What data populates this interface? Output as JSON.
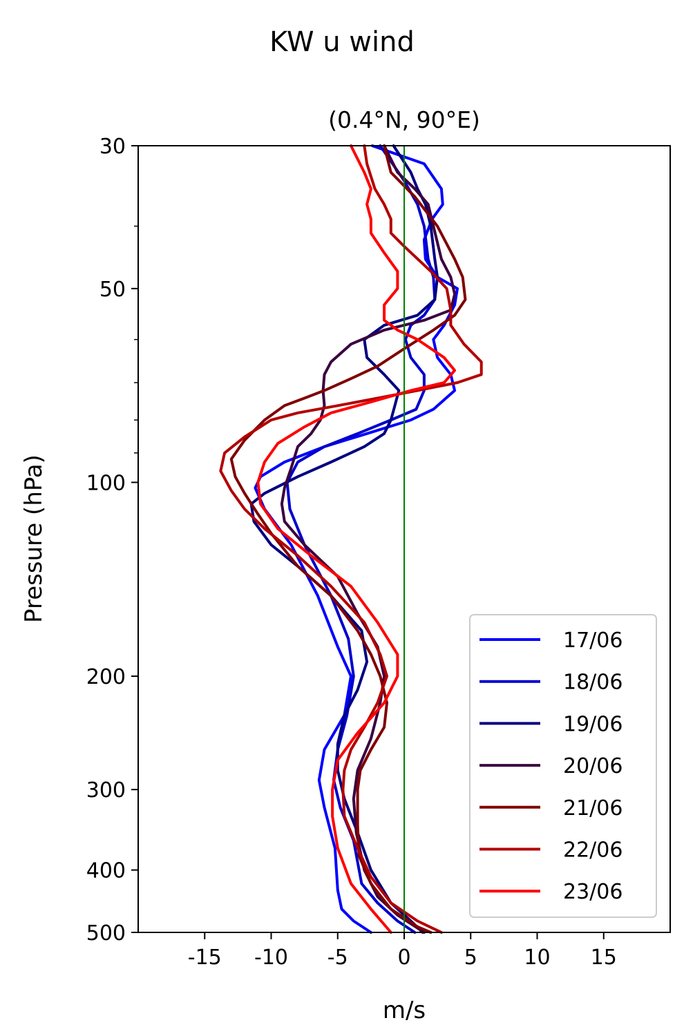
{
  "figure": {
    "suptitle": "KW u wind"
  },
  "chart_data": {
    "type": "line",
    "title": "(0.4°N, 90°E)",
    "xlabel": "m/s",
    "ylabel": "Pressure (hPa)",
    "xlim": [
      -20,
      20
    ],
    "ylim": [
      500,
      30
    ],
    "yscale": "log",
    "xticks": [
      -15,
      -10,
      -5,
      0,
      5,
      10,
      15
    ],
    "xtick_labels": [
      "-15",
      "-10",
      "-5",
      "0",
      "5",
      "10",
      "15"
    ],
    "yticks": [
      30,
      50,
      100,
      200,
      300,
      400,
      500
    ],
    "ytick_labels": [
      "30",
      "50",
      "100",
      "200",
      "300",
      "400",
      "500"
    ],
    "reference_line": {
      "x": 0,
      "color": "#008000"
    },
    "legend_position": "lower-right",
    "series": [
      {
        "name": "17/06",
        "color": "#0000ff",
        "points": [
          [
            -2.4,
            30
          ],
          [
            1.5,
            32
          ],
          [
            2.8,
            35
          ],
          [
            2.9,
            37
          ],
          [
            2.1,
            39
          ],
          [
            1.5,
            42
          ],
          [
            1.6,
            45
          ],
          [
            2.5,
            48
          ],
          [
            4,
            50
          ],
          [
            3.8,
            53
          ],
          [
            3,
            57
          ],
          [
            2.2,
            60
          ],
          [
            2.5,
            64
          ],
          [
            3.5,
            68
          ],
          [
            3.8,
            72
          ],
          [
            2.2,
            77
          ],
          [
            0.5,
            80
          ],
          [
            -2.8,
            84
          ],
          [
            -6,
            88
          ],
          [
            -9,
            93
          ],
          [
            -10.8,
            98
          ],
          [
            -11.2,
            102
          ],
          [
            -10.5,
            110
          ],
          [
            -8.5,
            125
          ],
          [
            -6.5,
            150
          ],
          [
            -5,
            180
          ],
          [
            -4,
            200
          ],
          [
            -4.5,
            230
          ],
          [
            -6,
            260
          ],
          [
            -6.4,
            290
          ],
          [
            -6,
            320
          ],
          [
            -5.2,
            370
          ],
          [
            -5,
            430
          ],
          [
            -4.7,
            460
          ],
          [
            -3.8,
            480
          ],
          [
            -2.5,
            500
          ]
        ]
      },
      {
        "name": "18/06",
        "color": "#0000cc",
        "points": [
          [
            -1.8,
            30
          ],
          [
            0,
            34
          ],
          [
            1,
            37
          ],
          [
            1.5,
            40
          ],
          [
            1.8,
            45
          ],
          [
            2.2,
            48
          ],
          [
            2.3,
            52
          ],
          [
            1.5,
            55
          ],
          [
            0.5,
            57
          ],
          [
            0.1,
            60
          ],
          [
            0.5,
            64
          ],
          [
            1.5,
            68
          ],
          [
            1.5,
            72
          ],
          [
            0.9,
            77
          ],
          [
            -1,
            80
          ],
          [
            -3.5,
            84
          ],
          [
            -6,
            88
          ],
          [
            -8,
            93
          ],
          [
            -8.8,
            100
          ],
          [
            -8.6,
            110
          ],
          [
            -7.5,
            125
          ],
          [
            -5.5,
            150
          ],
          [
            -4.2,
            175
          ],
          [
            -3.8,
            200
          ],
          [
            -4.3,
            230
          ],
          [
            -5,
            260
          ],
          [
            -5.3,
            290
          ],
          [
            -4.8,
            320
          ],
          [
            -3.8,
            360
          ],
          [
            -3.2,
            420
          ],
          [
            -2,
            450
          ],
          [
            -0.5,
            480
          ],
          [
            0.8,
            500
          ]
        ]
      },
      {
        "name": "19/06",
        "color": "#000080",
        "points": [
          [
            -0.8,
            30
          ],
          [
            0.5,
            33
          ],
          [
            1,
            35
          ],
          [
            1.6,
            37
          ],
          [
            2,
            40
          ],
          [
            2.3,
            45
          ],
          [
            2.5,
            48
          ],
          [
            2.3,
            52
          ],
          [
            1,
            55
          ],
          [
            -1.5,
            57
          ],
          [
            -3,
            60
          ],
          [
            -2.8,
            64
          ],
          [
            -1.5,
            68
          ],
          [
            -0.4,
            72
          ],
          [
            -0.7,
            76
          ],
          [
            -1,
            80
          ],
          [
            -1.5,
            84
          ],
          [
            -3,
            88
          ],
          [
            -5.5,
            93
          ],
          [
            -8,
            98
          ],
          [
            -10.5,
            104
          ],
          [
            -11.5,
            108
          ],
          [
            -11.3,
            115
          ],
          [
            -10,
            125
          ],
          [
            -8,
            135
          ],
          [
            -5.5,
            150
          ],
          [
            -3.2,
            170
          ],
          [
            -2.8,
            190
          ],
          [
            -3.5,
            210
          ],
          [
            -4.5,
            230
          ],
          [
            -5,
            255
          ],
          [
            -5,
            280
          ],
          [
            -4.5,
            310
          ],
          [
            -3.5,
            350
          ],
          [
            -2.5,
            400
          ],
          [
            -1,
            450
          ],
          [
            0.5,
            480
          ],
          [
            1.4,
            500
          ]
        ]
      },
      {
        "name": "20/06",
        "color": "#3a0040",
        "points": [
          [
            -1.5,
            30
          ],
          [
            -0.5,
            33
          ],
          [
            0.8,
            35
          ],
          [
            1.8,
            37
          ],
          [
            2.2,
            40
          ],
          [
            2.8,
            45
          ],
          [
            3.5,
            48
          ],
          [
            3.8,
            51
          ],
          [
            3.5,
            54
          ],
          [
            1.5,
            56
          ],
          [
            -1.5,
            58
          ],
          [
            -4,
            61
          ],
          [
            -5.5,
            65
          ],
          [
            -6,
            68
          ],
          [
            -6.1,
            72
          ],
          [
            -6,
            76
          ],
          [
            -6.3,
            80
          ],
          [
            -7,
            84
          ],
          [
            -8,
            88
          ],
          [
            -8.5,
            95
          ],
          [
            -9,
            102
          ],
          [
            -9.2,
            108
          ],
          [
            -9,
            115
          ],
          [
            -7.5,
            125
          ],
          [
            -5,
            140
          ],
          [
            -3.5,
            160
          ],
          [
            -2,
            180
          ],
          [
            -1.5,
            200
          ],
          [
            -1.8,
            220
          ],
          [
            -2.5,
            250
          ],
          [
            -3.5,
            280
          ],
          [
            -3.8,
            310
          ],
          [
            -3.6,
            350
          ],
          [
            -3,
            400
          ],
          [
            -2,
            440
          ],
          [
            -0.5,
            470
          ],
          [
            1.5,
            500
          ]
        ]
      },
      {
        "name": "21/06",
        "color": "#800000",
        "points": [
          [
            -1.5,
            30
          ],
          [
            -1,
            33
          ],
          [
            0.8,
            36
          ],
          [
            2.5,
            40
          ],
          [
            3.8,
            45
          ],
          [
            4.4,
            48
          ],
          [
            4.6,
            52
          ],
          [
            3.8,
            55
          ],
          [
            2.2,
            58
          ],
          [
            0,
            62
          ],
          [
            -2,
            66
          ],
          [
            -4,
            69
          ],
          [
            -6,
            72
          ],
          [
            -7.5,
            74
          ],
          [
            -9,
            76
          ],
          [
            -10.5,
            80
          ],
          [
            -12,
            86
          ],
          [
            -13,
            92
          ],
          [
            -12.7,
            98
          ],
          [
            -12,
            104
          ],
          [
            -11,
            112
          ],
          [
            -10,
            120
          ],
          [
            -8,
            135
          ],
          [
            -5.5,
            150
          ],
          [
            -3.5,
            170
          ],
          [
            -2.5,
            185
          ],
          [
            -1.8,
            200
          ],
          [
            -1.3,
            220
          ],
          [
            -1.5,
            240
          ],
          [
            -2.5,
            260
          ],
          [
            -3.3,
            280
          ],
          [
            -3.5,
            300
          ],
          [
            -3.5,
            340
          ],
          [
            -3.4,
            380
          ],
          [
            -2.5,
            420
          ],
          [
            -1,
            460
          ],
          [
            1,
            490
          ],
          [
            2,
            500
          ]
        ]
      },
      {
        "name": "22/06",
        "color": "#b30000",
        "points": [
          [
            -3,
            30
          ],
          [
            -2.8,
            32
          ],
          [
            -2.2,
            35
          ],
          [
            -1.5,
            37
          ],
          [
            -1,
            39
          ],
          [
            -1,
            41
          ],
          [
            0,
            43
          ],
          [
            2,
            47
          ],
          [
            3.2,
            50
          ],
          [
            3.5,
            54
          ],
          [
            3.5,
            57
          ],
          [
            4.5,
            61
          ],
          [
            5.8,
            65
          ],
          [
            5.8,
            68
          ],
          [
            4,
            70
          ],
          [
            1,
            72
          ],
          [
            -2,
            74
          ],
          [
            -5,
            76
          ],
          [
            -8,
            78
          ],
          [
            -10,
            80
          ],
          [
            -12,
            85
          ],
          [
            -13.5,
            90
          ],
          [
            -13.8,
            96
          ],
          [
            -13,
            103
          ],
          [
            -12,
            110
          ],
          [
            -10.5,
            118
          ],
          [
            -8,
            130
          ],
          [
            -5.5,
            145
          ],
          [
            -3,
            165
          ],
          [
            -1.8,
            185
          ],
          [
            -1.3,
            200
          ],
          [
            -2,
            220
          ],
          [
            -3,
            240
          ],
          [
            -4,
            260
          ],
          [
            -4.5,
            280
          ],
          [
            -4.6,
            300
          ],
          [
            -4.5,
            330
          ],
          [
            -3.5,
            370
          ],
          [
            -2.5,
            410
          ],
          [
            -1,
            450
          ],
          [
            1,
            480
          ],
          [
            2.8,
            500
          ]
        ]
      },
      {
        "name": "23/06",
        "color": "#ff0000",
        "points": [
          [
            -4,
            30
          ],
          [
            -3,
            33
          ],
          [
            -2.5,
            35
          ],
          [
            -2.8,
            37
          ],
          [
            -2.5,
            39
          ],
          [
            -2.5,
            41
          ],
          [
            -1.5,
            44
          ],
          [
            -0.5,
            47
          ],
          [
            -0.5,
            50
          ],
          [
            -1.5,
            53
          ],
          [
            -1.5,
            56
          ],
          [
            -0.5,
            58
          ],
          [
            1,
            60
          ],
          [
            3,
            64
          ],
          [
            3.8,
            67
          ],
          [
            3,
            70
          ],
          [
            0.5,
            72
          ],
          [
            -2.5,
            75
          ],
          [
            -5.5,
            78
          ],
          [
            -7.5,
            82
          ],
          [
            -9.5,
            87
          ],
          [
            -10.5,
            93
          ],
          [
            -11,
            100
          ],
          [
            -10.8,
            108
          ],
          [
            -9.5,
            118
          ],
          [
            -7,
            130
          ],
          [
            -4,
            145
          ],
          [
            -2,
            165
          ],
          [
            -0.5,
            185
          ],
          [
            -0.5,
            200
          ],
          [
            -1.5,
            220
          ],
          [
            -3.5,
            245
          ],
          [
            -5,
            270
          ],
          [
            -5.4,
            300
          ],
          [
            -5.4,
            330
          ],
          [
            -5,
            370
          ],
          [
            -4,
            420
          ],
          [
            -2.5,
            460
          ],
          [
            -1,
            500
          ]
        ]
      }
    ]
  }
}
